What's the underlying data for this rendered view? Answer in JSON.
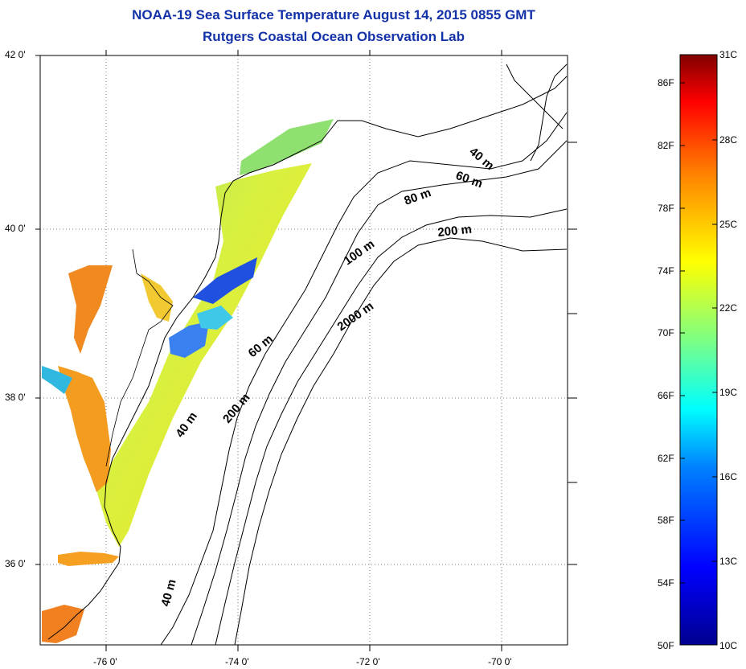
{
  "header": {
    "title": "NOAA-19 Sea Surface Temperature August 14, 2015 0855 GMT",
    "subtitle": "Rutgers Coastal Ocean Observation Lab"
  },
  "map": {
    "lat_ticks": [
      "42 0'",
      "40 0'",
      "38 0'",
      "36 0'"
    ],
    "lon_ticks": [
      "-76 0'",
      "-74 0'",
      "-72 0'",
      "-70 0'"
    ],
    "contour_labels": [
      "40 m",
      "60 m",
      "80 m",
      "200 m",
      "100 m",
      "2000 m",
      "60 m",
      "200 m",
      "40 m",
      "40 m"
    ],
    "extent": {
      "lat": [
        35,
        42.1
      ],
      "lon": [
        -77,
        -69
      ]
    }
  },
  "colorbar": {
    "fahrenheit": [
      "86F",
      "82F",
      "78F",
      "74F",
      "70F",
      "66F",
      "62F",
      "58F",
      "54F",
      "50F"
    ],
    "celsius": [
      "31C",
      "28C",
      "25C",
      "22C",
      "19C",
      "16C",
      "13C",
      "10C"
    ],
    "colors": [
      "#00008f",
      "#0000ff",
      "#0080ff",
      "#00ffff",
      "#80ff80",
      "#ffff00",
      "#ff8000",
      "#ff0000",
      "#800000"
    ]
  }
}
